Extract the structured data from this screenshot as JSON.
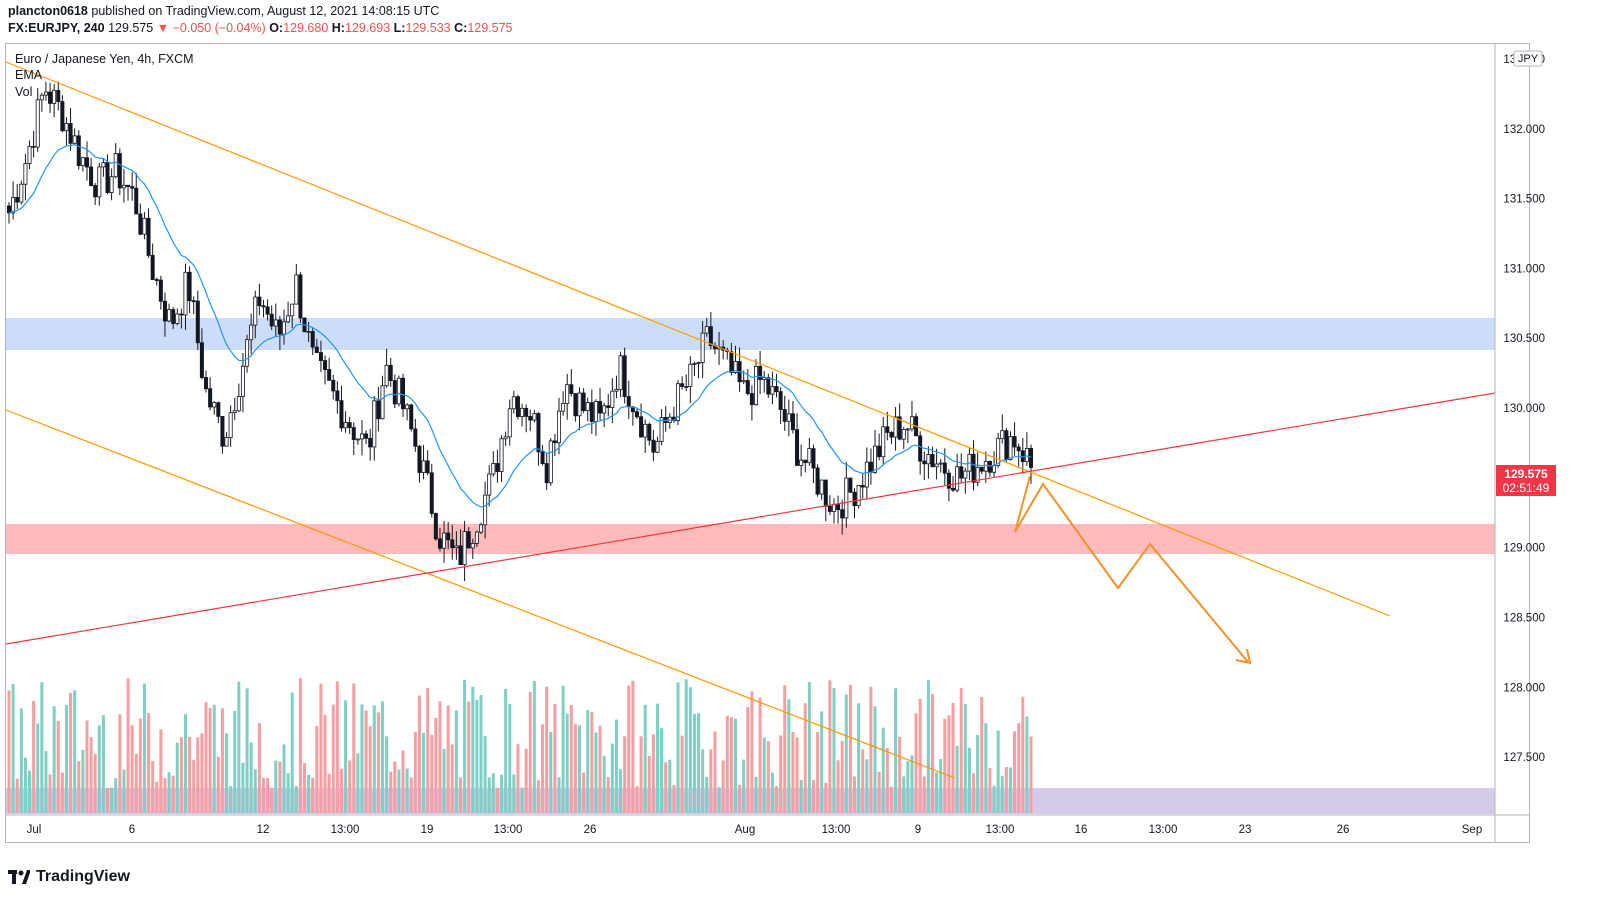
{
  "header": {
    "author": "plancton0618",
    "published_text": "published on TradingView.com, August 12, 2021 14:08:15 UTC",
    "symbol": "FX:EURJPY, 240",
    "last": "129.575",
    "change": "−0.050 (−0.04%)",
    "o_label": "O:",
    "o_value": "129.680",
    "h_label": "H:",
    "h_value": "129.693",
    "l_label": "L:",
    "l_value": "129.533",
    "c_label": "C:",
    "c_value": "129.575"
  },
  "legend": {
    "title": "Euro / Japanese Yen, 4h, FXCM",
    "ema": "EMA",
    "vol": "Vol"
  },
  "axis": {
    "currency": "JPY",
    "price_label": "129.575",
    "countdown": "02:51:49"
  },
  "footer": {
    "brand": "TradingView"
  },
  "colors": {
    "up": "#26a69a",
    "down": "#ef5350",
    "ema": "#2196f3",
    "trend_orange": "#ff9800",
    "support_red": "#f23645",
    "resist_zone": "#bbd1f7",
    "support_zone": "#ffb3b5",
    "vol_up": "#7fcfc5",
    "vol_down": "#f59fa2",
    "vol_band": "#d1c4e9"
  },
  "chart_data": {
    "type": "candlestick",
    "title": "Euro / Japanese Yen, 4h, FXCM",
    "ylim": [
      127.1,
      132.6
    ],
    "y_ticks": [
      "132.500",
      "132.000",
      "131.500",
      "131.000",
      "130.500",
      "130.000",
      "129.500",
      "129.000",
      "128.500",
      "128.000",
      "127.500"
    ],
    "x_ticks": [
      "Jul",
      "6",
      "12",
      "13:00",
      "19",
      "13:00",
      "26",
      "Aug",
      "13:00",
      "9",
      "13:00",
      "16",
      "13:00",
      "23",
      "26",
      "Sep"
    ],
    "zones": [
      {
        "name": "resistance",
        "from": 130.48,
        "to": 130.7
      },
      {
        "name": "support",
        "from": 128.99,
        "to": 129.2
      }
    ],
    "close_path": [
      131.4,
      131.8,
      132.3,
      132.1,
      131.8,
      131.6,
      131.7,
      131.5,
      131.0,
      130.6,
      130.9,
      130.1,
      129.8,
      130.3,
      130.8,
      130.5,
      130.9,
      130.3,
      130.1,
      129.9,
      129.7,
      130.3,
      130.0,
      129.6,
      129.1,
      128.9,
      129.2,
      129.5,
      130.1,
      130.0,
      129.6,
      130.2,
      130.0,
      129.9,
      130.3,
      130.0,
      129.7,
      130.0,
      130.2,
      130.5,
      130.3,
      130.1,
      130.2,
      130.0,
      129.7,
      129.5,
      129.3,
      129.4,
      129.6,
      129.8,
      129.9,
      129.7,
      129.6,
      129.5,
      129.6,
      129.7,
      129.8,
      129.6
    ]
  }
}
